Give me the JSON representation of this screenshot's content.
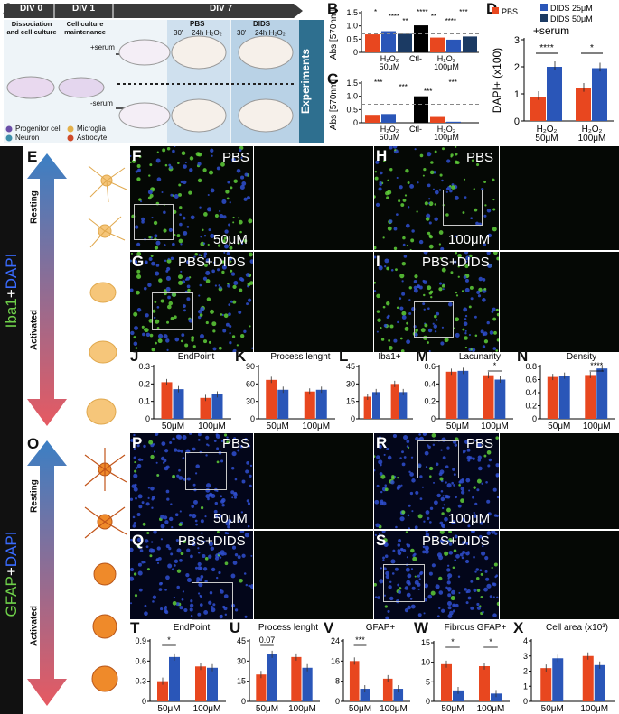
{
  "figure": {
    "colors": {
      "pbs": "#e8471f",
      "dids25": "#2a56b8",
      "dids50": "#1b3a63",
      "ctl": "#000000",
      "gfp_green": "#5fcf3a",
      "dapi_blue": "#2f4fd0"
    },
    "panel_A": {
      "label": "A",
      "days": [
        "DIV 0",
        "DIV 1",
        "DIV 7"
      ],
      "div0_text": "Dissociation and cell culture",
      "div1_text": "Cell culture maintenance",
      "plus_serum": "+serum",
      "minus_serum": "-serum",
      "pbs": "PBS",
      "dids": "DIDS",
      "t30": "30'",
      "h24": "24h H₂O₂",
      "experiments": "Experiments",
      "legend": [
        "Progenitor cell",
        "Microglia",
        "Neuron",
        "Astrocyte"
      ],
      "legend_colors": [
        "#6b4fa8",
        "#e3b04b",
        "#3d8eaa",
        "#cf4a2a"
      ]
    },
    "side_E": {
      "marker": "Iba1",
      "plus": "+",
      "dapi": "DAPI",
      "resting": "Resting",
      "activated": "Activated"
    },
    "side_O": {
      "marker": "GFAP",
      "plus": "+",
      "dapi": "DAPI",
      "resting": "Resting",
      "activated": "Activated"
    },
    "micro_labels": {
      "F": "PBS",
      "F_dose": "50μM",
      "H": "PBS",
      "H_dose": "100μM",
      "G": "PBS+DIDS",
      "I": "PBS+DIDS",
      "P": "PBS",
      "P_dose": "50μM",
      "R": "PBS",
      "R_dose": "100μM",
      "Q": "PBS+DIDS",
      "S": "PBS+DIDS"
    },
    "panel_letters": [
      "A",
      "B",
      "C",
      "D",
      "E",
      "F",
      "G",
      "H",
      "I",
      "J",
      "K",
      "L",
      "M",
      "N",
      "O",
      "P",
      "Q",
      "R",
      "S",
      "T",
      "U",
      "V",
      "W",
      "X"
    ]
  },
  "chart_data": [
    {
      "id": "B",
      "type": "bar",
      "ylabel": "Abs [570nm]",
      "ylim": [
        0,
        1.5
      ],
      "yticks": [
        "0",
        "0.5",
        "1.0",
        "1.5"
      ],
      "categories": [
        "H₂O₂ 50μM",
        "Ctl-",
        "H₂O₂ 100μM"
      ],
      "bars": [
        {
          "group": "50μM",
          "series": "PBS",
          "value": 0.68
        },
        {
          "group": "50μM",
          "series": "DIDS 25μM",
          "value": 0.8
        },
        {
          "group": "50μM",
          "series": "DIDS 50μM",
          "value": 0.7
        },
        {
          "group": "Ctl-",
          "series": "Ctl-",
          "value": 1.02
        },
        {
          "group": "100μM",
          "series": "PBS",
          "value": 0.56
        },
        {
          "group": "100μM",
          "series": "DIDS 25μM",
          "value": 0.48
        },
        {
          "group": "100μM",
          "series": "DIDS 50μM",
          "value": 0.6
        }
      ],
      "dashed_line": 0.7,
      "significance": [
        "*",
        "****",
        "**",
        "****",
        "**",
        "****",
        "***"
      ]
    },
    {
      "id": "C",
      "type": "bar",
      "ylabel": "Abs [570nm]",
      "ylim": [
        0,
        1.5
      ],
      "yticks": [
        "0",
        "0.5",
        "1.0",
        "1.5"
      ],
      "categories": [
        "H₂O₂ 50μM",
        "Ctl-",
        "H₂O₂ 100μM"
      ],
      "bars": [
        {
          "group": "50μM",
          "series": "PBS",
          "value": 0.3
        },
        {
          "group": "50μM",
          "series": "DIDS 25μM",
          "value": 0.33
        },
        {
          "group": "50μM",
          "series": "DIDS 50μM",
          "value": 0.0
        },
        {
          "group": "Ctl-",
          "series": "Ctl-",
          "value": 1.0
        },
        {
          "group": "100μM",
          "series": "PBS",
          "value": 0.22
        },
        {
          "group": "100μM",
          "series": "DIDS 25μM",
          "value": 0.04
        },
        {
          "group": "100μM",
          "series": "DIDS 50μM",
          "value": 0.0
        }
      ],
      "dashed_line": 0.7,
      "significance": [
        "***",
        "***",
        "***",
        "***"
      ]
    },
    {
      "id": "D",
      "type": "bar",
      "ylabel": "DAPI+ (x100)",
      "ylim": [
        0,
        3
      ],
      "yticks": [
        "0",
        "1",
        "2",
        "3"
      ],
      "title": "+serum",
      "legend": [
        "PBS",
        "DIDS 25μM",
        "DIDS 50μM"
      ],
      "categories": [
        "H₂O₂ 50μM",
        "H₂O₂ 100μM"
      ],
      "series": [
        {
          "name": "PBS",
          "values": [
            0.9,
            1.2
          ]
        },
        {
          "name": "DIDS 25μM",
          "values": [
            2.0,
            1.95
          ]
        }
      ],
      "significance": [
        "****",
        "*"
      ]
    },
    {
      "id": "J",
      "type": "bar",
      "title": "EndPoint",
      "ylim": [
        0,
        0.3
      ],
      "yticks": [
        "0",
        "0.1",
        "0.2",
        "0.3"
      ],
      "categories": [
        "50μM",
        "100μM"
      ],
      "series": [
        {
          "name": "PBS",
          "values": [
            0.21,
            0.12
          ]
        },
        {
          "name": "PBS+DIDS",
          "values": [
            0.17,
            0.14
          ]
        }
      ],
      "significance": []
    },
    {
      "id": "K",
      "type": "bar",
      "title": "Process lenght",
      "ylim": [
        0,
        90
      ],
      "yticks": [
        "0",
        "30",
        "60",
        "90"
      ],
      "categories": [
        "50μM",
        "100μM"
      ],
      "series": [
        {
          "name": "PBS",
          "values": [
            67,
            47
          ]
        },
        {
          "name": "PBS+DIDS",
          "values": [
            50,
            50
          ]
        }
      ],
      "significance": []
    },
    {
      "id": "L",
      "type": "bar",
      "title": "Iba1+",
      "ylim": [
        0,
        45
      ],
      "yticks": [
        "0",
        "15",
        "30",
        "45"
      ],
      "categories": [
        "",
        ""
      ],
      "series": [
        {
          "name": "PBS",
          "values": [
            19,
            30
          ]
        },
        {
          "name": "PBS+DIDS",
          "values": [
            23,
            23
          ]
        }
      ],
      "significance": []
    },
    {
      "id": "M",
      "type": "bar",
      "title": "Lacunarity",
      "ylim": [
        0,
        0.6
      ],
      "yticks": [
        "0",
        "0.2",
        "0.4",
        "0.6"
      ],
      "categories": [
        "50μM",
        "100μM"
      ],
      "series": [
        {
          "name": "PBS",
          "values": [
            0.54,
            0.5
          ]
        },
        {
          "name": "PBS+DIDS",
          "values": [
            0.55,
            0.45
          ]
        }
      ],
      "significance": [
        "*"
      ]
    },
    {
      "id": "N",
      "type": "bar",
      "title": "Density",
      "ylim": [
        0,
        0.8
      ],
      "yticks": [
        "0",
        "0.2",
        "0.4",
        "0.6",
        "0.8"
      ],
      "categories": [
        "50μM",
        "100μM"
      ],
      "series": [
        {
          "name": "PBS",
          "values": [
            0.64,
            0.67
          ]
        },
        {
          "name": "PBS+DIDS",
          "values": [
            0.66,
            0.77
          ]
        }
      ],
      "significance": [
        "****"
      ]
    },
    {
      "id": "T",
      "type": "bar",
      "title": "EndPoint",
      "ylim": [
        0,
        0.9
      ],
      "yticks": [
        "0",
        "0.3",
        "0.6",
        "0.9"
      ],
      "categories": [
        "50μM",
        "100μM"
      ],
      "series": [
        {
          "name": "PBS",
          "values": [
            0.3,
            0.52
          ]
        },
        {
          "name": "PBS+DIDS",
          "values": [
            0.66,
            0.5
          ]
        }
      ],
      "significance": [
        "*"
      ]
    },
    {
      "id": "U",
      "type": "bar",
      "title": "Process lenght",
      "ylim": [
        0,
        45
      ],
      "yticks": [
        "0",
        "15",
        "30",
        "45"
      ],
      "categories": [
        "50μM",
        "100μM"
      ],
      "series": [
        {
          "name": "PBS",
          "values": [
            20,
            33
          ]
        },
        {
          "name": "PBS+DIDS",
          "values": [
            35,
            25
          ]
        }
      ],
      "significance": [
        "0.07"
      ]
    },
    {
      "id": "V",
      "type": "bar",
      "title": "GFAP+",
      "ylim": [
        0,
        24
      ],
      "yticks": [
        "0",
        "8",
        "16",
        "24"
      ],
      "categories": [
        "50μM",
        "100μM"
      ],
      "series": [
        {
          "name": "PBS",
          "values": [
            16,
            9
          ]
        },
        {
          "name": "PBS+DIDS",
          "values": [
            5,
            5
          ]
        }
      ],
      "significance": [
        "***"
      ]
    },
    {
      "id": "W",
      "type": "bar",
      "title": "Fibrous GFAP+",
      "ylim": [
        0,
        15
      ],
      "yticks": [
        "0",
        "5",
        "10",
        "15"
      ],
      "categories": [
        "50μM",
        "100μM"
      ],
      "series": [
        {
          "name": "PBS",
          "values": [
            9.5,
            9
          ]
        },
        {
          "name": "PBS+DIDS",
          "values": [
            2.8,
            2
          ]
        }
      ],
      "significance": [
        "*",
        "*"
      ]
    },
    {
      "id": "X",
      "type": "bar",
      "title": "Cell area",
      "title_unit": "(x10³)",
      "ylim": [
        0,
        4
      ],
      "yticks": [
        "0",
        "1",
        "2",
        "3",
        "4"
      ],
      "categories": [
        "50μM",
        "100μM"
      ],
      "series": [
        {
          "name": "PBS",
          "values": [
            2.2,
            3.0
          ]
        },
        {
          "name": "PBS+DIDS",
          "values": [
            2.85,
            2.4
          ]
        }
      ],
      "significance": []
    }
  ]
}
